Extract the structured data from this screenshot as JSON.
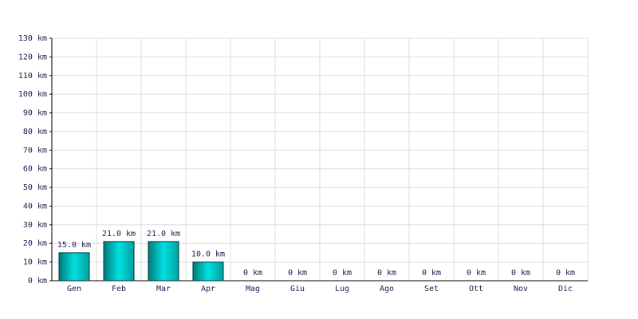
{
  "chart_data": {
    "type": "bar",
    "categories": [
      "Gen",
      "Feb",
      "Mar",
      "Apr",
      "Mag",
      "Giu",
      "Lug",
      "Ago",
      "Set",
      "Ott",
      "Nov",
      "Dic"
    ],
    "values": [
      15,
      21,
      21,
      10,
      0,
      0,
      0,
      0,
      0,
      0,
      0,
      0
    ],
    "value_labels": [
      "15.0 km",
      "21.0 km",
      "21.0 km",
      "10.0 km",
      "0 km",
      "0 km",
      "0 km",
      "0 km",
      "0 km",
      "0 km",
      "0 km",
      "0 km"
    ],
    "color": "#00c8c8",
    "ylim": [
      0,
      130
    ],
    "yticks": [
      {
        "value": 0,
        "label": "0 km"
      },
      {
        "value": 10,
        "label": "10 km"
      },
      {
        "value": 20,
        "label": "20 km"
      },
      {
        "value": 30,
        "label": "30 km"
      },
      {
        "value": 40,
        "label": "40 km"
      },
      {
        "value": 50,
        "label": "50 km"
      },
      {
        "value": 60,
        "label": "60 km"
      },
      {
        "value": 70,
        "label": "70 km"
      },
      {
        "value": 80,
        "label": "80 km"
      },
      {
        "value": 90,
        "label": "90 km"
      },
      {
        "value": 100,
        "label": "100 km"
      },
      {
        "value": 110,
        "label": "110 km"
      },
      {
        "value": 120,
        "label": "120 km"
      },
      {
        "value": 130,
        "label": "130 km"
      }
    ],
    "grid": true
  }
}
